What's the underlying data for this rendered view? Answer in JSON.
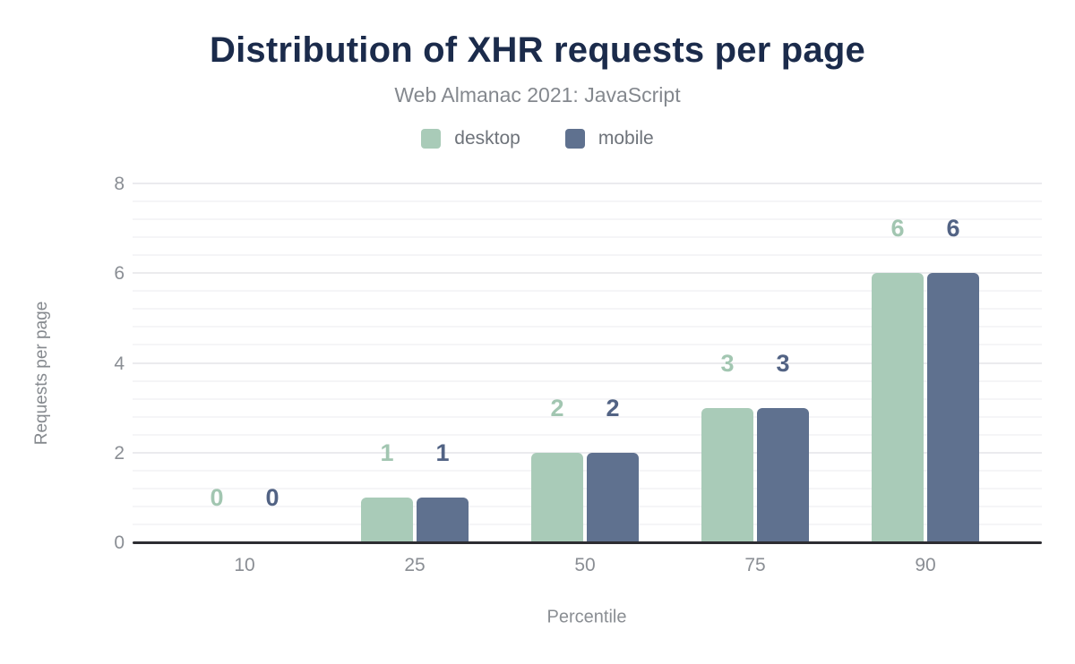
{
  "header": {
    "title": "Distribution of XHR requests per page",
    "subtitle": "Web Almanac 2021: JavaScript"
  },
  "chart_data": {
    "type": "bar",
    "title": "Distribution of XHR requests per page",
    "subtitle": "Web Almanac 2021: JavaScript",
    "categories": [
      "10",
      "25",
      "50",
      "75",
      "90"
    ],
    "series": [
      {
        "name": "desktop",
        "values": [
          0,
          1,
          2,
          3,
          6
        ],
        "color": "#a9cbb8",
        "value_label_color": "#a2c6b1"
      },
      {
        "name": "mobile",
        "values": [
          0,
          1,
          2,
          3,
          6
        ],
        "color": "#5f718f",
        "value_label_color": "#526384"
      }
    ],
    "xlabel": "Percentile",
    "ylabel": "Requests per page",
    "ylim": [
      0,
      8
    ],
    "yticks": [
      0,
      2,
      4,
      6,
      8
    ],
    "grid": {
      "show": true,
      "minor_step": 0.4,
      "major_every": 2
    },
    "legend_position": "top",
    "value_labels_shown": true
  },
  "colors": {
    "background": "#ffffff",
    "title": "#1b2b4b",
    "subtitle": "#84888e",
    "legend_text": "#6e737a",
    "axis_text": "#8a8e94",
    "axis_line": "#2d2d32",
    "grid_minor": "#f5f5f7",
    "grid_major": "#ebebee"
  }
}
